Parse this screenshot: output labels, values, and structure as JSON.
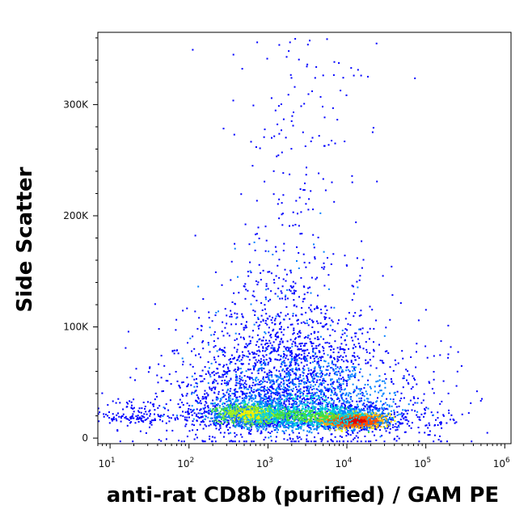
{
  "chart_data": {
    "type": "scatter",
    "subtype": "flow-cytometry density dot plot",
    "xlabel": "anti-rat CD8b (purified)  / GAM PE",
    "ylabel": "Side Scatter",
    "x_scale": "log",
    "xlim": [
      7,
      1200000
    ],
    "ylim": [
      -5000,
      365000
    ],
    "x_ticks": [
      {
        "value": 10,
        "base": "10",
        "exp": "1"
      },
      {
        "value": 100,
        "base": "10",
        "exp": "2"
      },
      {
        "value": 1000,
        "base": "10",
        "exp": "3"
      },
      {
        "value": 10000,
        "base": "10",
        "exp": "4"
      },
      {
        "value": 100000,
        "base": "10",
        "exp": "5"
      },
      {
        "value": 1000000,
        "base": "10",
        "exp": "6"
      }
    ],
    "y_ticks": [
      {
        "value": 0,
        "label": "0"
      },
      {
        "value": 100000,
        "label": "100K"
      },
      {
        "value": 200000,
        "label": "200K"
      },
      {
        "value": 300000,
        "label": "300K"
      }
    ],
    "populations": [
      {
        "x_center": 12000,
        "y_center": 15000,
        "x_spread_decades": 0.28,
        "y_spread": 5000,
        "density": "highest",
        "color": "#e01010"
      },
      {
        "x_center": 600,
        "y_center": 22000,
        "x_spread_decades": 0.3,
        "y_spread": 7000,
        "density": "high",
        "color": "#f0e020"
      },
      {
        "x_center": 3000,
        "y_center": 25000,
        "x_spread_decades": 0.9,
        "y_spread": 25000,
        "density": "medium",
        "color": "#20b0e0"
      },
      {
        "x_center": 20,
        "y_center": 20000,
        "x_spread_decades": 0.3,
        "y_spread": 6000,
        "density": "low",
        "color": "#0000ff"
      }
    ],
    "colormap": [
      "#0000ff",
      "#0080ff",
      "#00d0e0",
      "#40e040",
      "#f0f000",
      "#ff8000",
      "#e00000"
    ],
    "grid": false
  }
}
